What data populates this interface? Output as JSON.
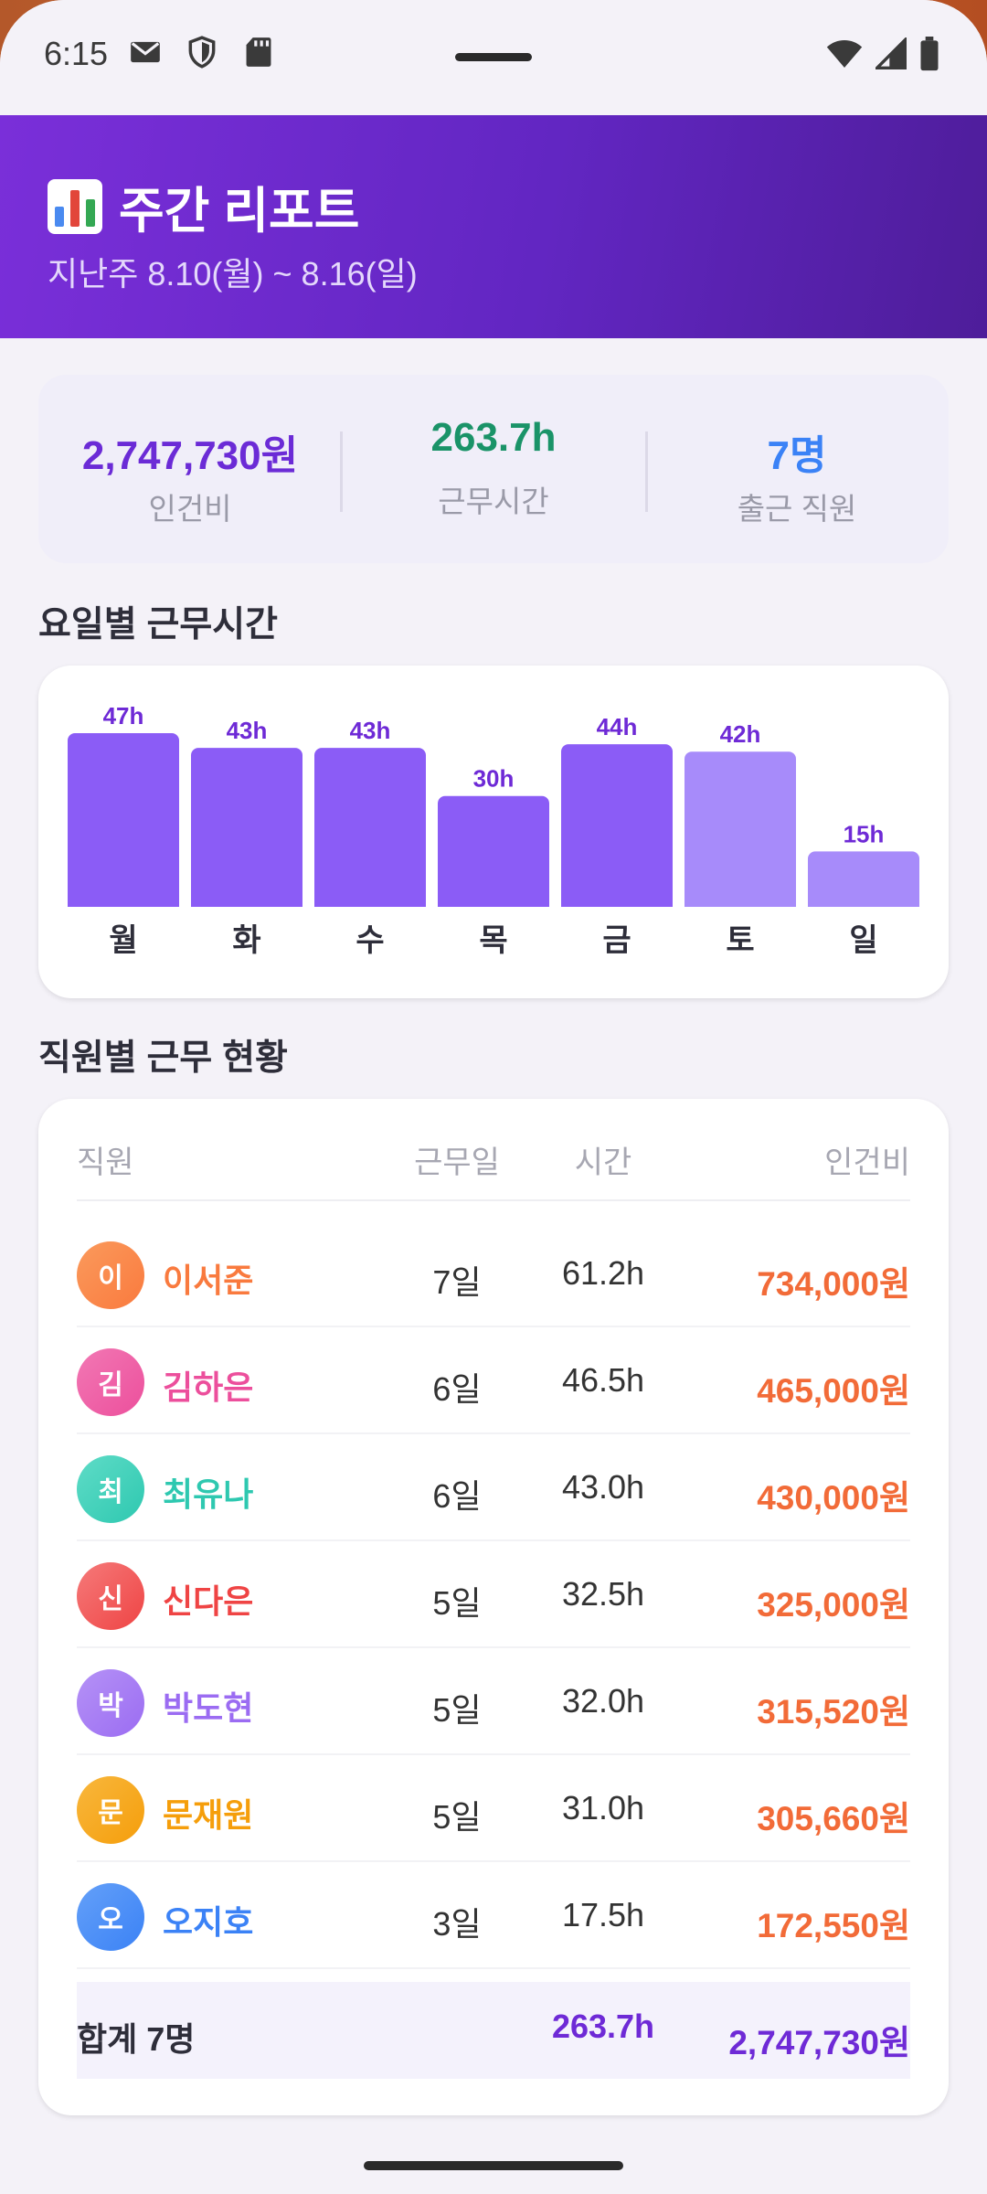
{
  "status_bar": {
    "time": "6:15",
    "left_icons": [
      "mail-icon",
      "shield-icon",
      "sd-card-icon"
    ],
    "right_icons": [
      "wifi-icon",
      "signal-icon",
      "battery-icon"
    ]
  },
  "header": {
    "icon": "bar-chart-icon",
    "title": "주간 리포트",
    "subtitle": "지난주 8.10(월) ~ 8.16(일)"
  },
  "summary": [
    {
      "value": "2,747,730원",
      "label": "인건비",
      "color": "#6b2bd6"
    },
    {
      "value": "263.7h",
      "label": "근무시간",
      "color": "#1a9368"
    },
    {
      "value": "7명",
      "label": "출근 직원",
      "color": "#3b82f6"
    }
  ],
  "chart_section_title": "요일별 근무시간",
  "chart_data": {
    "type": "bar",
    "categories": [
      "월",
      "화",
      "수",
      "목",
      "금",
      "토",
      "일"
    ],
    "values": [
      47,
      43,
      43,
      30,
      44,
      42,
      15
    ],
    "value_labels": [
      "47h",
      "43h",
      "43h",
      "30h",
      "44h",
      "42h",
      "15h"
    ],
    "unit": "h",
    "ylim": [
      0,
      47
    ],
    "grid": false,
    "colors": [
      "#8b5cf6",
      "#8b5cf6",
      "#8b5cf6",
      "#8b5cf6",
      "#8b5cf6",
      "#a78bfa",
      "#a78bfa"
    ]
  },
  "staff_section_title": "직원별 근무 현황",
  "table": {
    "headers": {
      "staff": "직원",
      "days": "근무일",
      "hours": "시간",
      "pay": "인건비"
    },
    "rows": [
      {
        "initial": "이",
        "name": "이서준",
        "days": "7일",
        "hours": "61.2h",
        "pay": "734,000원",
        "color": "#f97a3e",
        "color2": "#fb9a5c"
      },
      {
        "initial": "김",
        "name": "김하은",
        "days": "6일",
        "hours": "46.5h",
        "pay": "465,000원",
        "color": "#ec4f9c",
        "color2": "#f278b4"
      },
      {
        "initial": "최",
        "name": "최유나",
        "days": "6일",
        "hours": "43.0h",
        "pay": "430,000원",
        "color": "#2ec8b0",
        "color2": "#5fdcc7"
      },
      {
        "initial": "신",
        "name": "신다은",
        "days": "5일",
        "hours": "32.5h",
        "pay": "325,000원",
        "color": "#ef4444",
        "color2": "#f57a7a"
      },
      {
        "initial": "박",
        "name": "박도현",
        "days": "5일",
        "hours": "32.0h",
        "pay": "315,520원",
        "color": "#9b6cf2",
        "color2": "#b592f6"
      },
      {
        "initial": "문",
        "name": "문재원",
        "days": "5일",
        "hours": "31.0h",
        "pay": "305,660원",
        "color": "#f59e0b",
        "color2": "#f8b73d"
      },
      {
        "initial": "오",
        "name": "오지호",
        "days": "3일",
        "hours": "17.5h",
        "pay": "172,550원",
        "color": "#3b82f6",
        "color2": "#64a0f8"
      }
    ],
    "total": {
      "label": "합계 7명",
      "hours": "263.7h",
      "pay": "2,747,730원"
    }
  }
}
